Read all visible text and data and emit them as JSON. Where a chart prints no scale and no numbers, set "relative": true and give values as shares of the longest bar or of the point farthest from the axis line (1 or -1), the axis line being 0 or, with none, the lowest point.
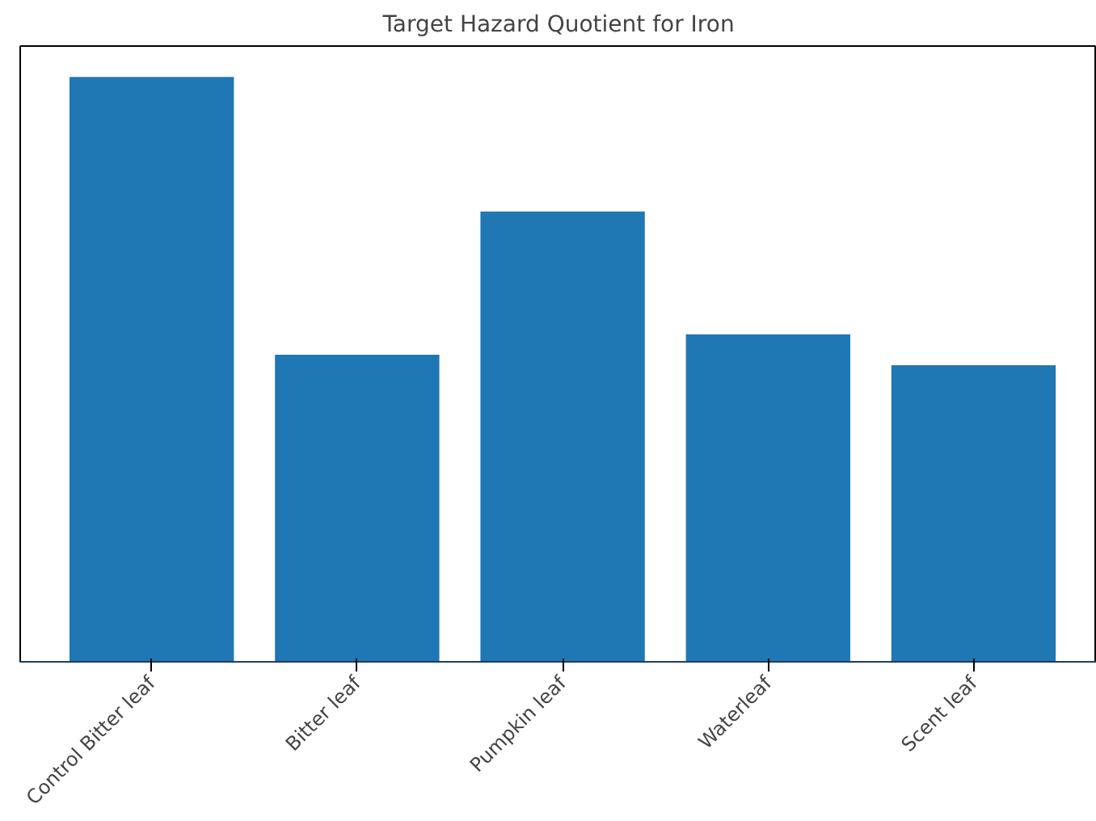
{
  "chart_data": {
    "type": "bar",
    "title": "Target Hazard Quotient for Iron",
    "categories": [
      "Control Bitter leaf",
      "Bitter leaf",
      "Pumpkin leaf",
      "Waterleaf",
      "Scent leaf"
    ],
    "values": [
      1.0,
      0.525,
      0.77,
      0.56,
      0.507
    ],
    "color": "#1f77b4",
    "relative": true
  }
}
